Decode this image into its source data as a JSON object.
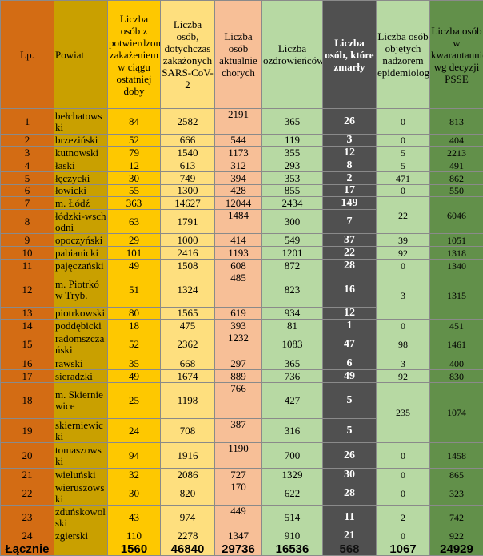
{
  "headers": [
    "Lp.",
    "Powiat",
    "Liczba osób z potwierdzonym zakażeniem w ciągu ostatniej doby",
    "Liczba osób, dotychczas zakażonych SARS-CoV-2",
    "Liczba osób aktualnie chorych",
    "Liczba ozdrowieńców",
    "Liczba osób, które zmarły",
    "Liczba osób objętych nadzorem epidemiologicznym",
    "Liczba osób w kwarantannie wg decyzji PSSE"
  ],
  "rows": [
    {
      "lp": "1",
      "powiat": "bełchatowski",
      "dobowe": "84",
      "zakazeni": "2582",
      "chorzy": "2191",
      "ozdrowiency": "365",
      "zmarli": "26",
      "nadzor": "0",
      "kwarantanna": "813"
    },
    {
      "lp": "2",
      "powiat": "brzeziński",
      "dobowe": "52",
      "zakazeni": "666",
      "chorzy": "544",
      "ozdrowiency": "119",
      "zmarli": "3",
      "nadzor": "0",
      "kwarantanna": "404"
    },
    {
      "lp": "3",
      "powiat": "kutnowski",
      "dobowe": "79",
      "zakazeni": "1540",
      "chorzy": "1173",
      "ozdrowiency": "355",
      "zmarli": "12",
      "nadzor": "5",
      "kwarantanna": "2213"
    },
    {
      "lp": "4",
      "powiat": "łaski",
      "dobowe": "12",
      "zakazeni": "613",
      "chorzy": "312",
      "ozdrowiency": "293",
      "zmarli": "8",
      "nadzor": "5",
      "kwarantanna": "491"
    },
    {
      "lp": "5",
      "powiat": "łęczycki",
      "dobowe": "30",
      "zakazeni": "749",
      "chorzy": "394",
      "ozdrowiency": "353",
      "zmarli": "2",
      "nadzor": "471",
      "kwarantanna": "862"
    },
    {
      "lp": "6",
      "powiat": "łowicki",
      "dobowe": "55",
      "zakazeni": "1300",
      "chorzy": "428",
      "ozdrowiency": "855",
      "zmarli": "17",
      "nadzor": "0",
      "kwarantanna": "550"
    },
    {
      "lp": "7",
      "powiat": "m. Łódź",
      "dobowe": "363",
      "zakazeni": "14627",
      "chorzy": "12044",
      "ozdrowiency": "2434",
      "zmarli": "149",
      "nadzor": "22",
      "kwarantanna": "6046"
    },
    {
      "lp": "8",
      "powiat": "łódzki-wschodni",
      "dobowe": "63",
      "zakazeni": "1791",
      "chorzy": "1484",
      "ozdrowiency": "300",
      "zmarli": "7",
      "nadzor": null,
      "kwarantanna": null
    },
    {
      "lp": "9",
      "powiat": "opoczyński",
      "dobowe": "29",
      "zakazeni": "1000",
      "chorzy": "414",
      "ozdrowiency": "549",
      "zmarli": "37",
      "nadzor": "39",
      "kwarantanna": "1051"
    },
    {
      "lp": "10",
      "powiat": "pabianicki",
      "dobowe": "101",
      "zakazeni": "2416",
      "chorzy": "1193",
      "ozdrowiency": "1201",
      "zmarli": "22",
      "nadzor": "92",
      "kwarantanna": "1318"
    },
    {
      "lp": "11",
      "powiat": "pajęczański",
      "dobowe": "49",
      "zakazeni": "1508",
      "chorzy": "608",
      "ozdrowiency": "872",
      "zmarli": "28",
      "nadzor": "0",
      "kwarantanna": "1340"
    },
    {
      "lp": "12",
      "powiat": "m. Piotrków Tryb.",
      "dobowe": "51",
      "zakazeni": "1324",
      "chorzy": "485",
      "ozdrowiency": "823",
      "zmarli": "16",
      "nadzor": "3",
      "kwarantanna": "1315"
    },
    {
      "lp": "13",
      "powiat": "piotrkowski",
      "dobowe": "80",
      "zakazeni": "1565",
      "chorzy": "619",
      "ozdrowiency": "934",
      "zmarli": "12",
      "nadzor": null,
      "kwarantanna": null
    },
    {
      "lp": "14",
      "powiat": "poddębicki",
      "dobowe": "18",
      "zakazeni": "475",
      "chorzy": "393",
      "ozdrowiency": "81",
      "zmarli": "1",
      "nadzor": "0",
      "kwarantanna": "451"
    },
    {
      "lp": "15",
      "powiat": "radomszczański",
      "dobowe": "52",
      "zakazeni": "2362",
      "chorzy": "1232",
      "ozdrowiency": "1083",
      "zmarli": "47",
      "nadzor": "98",
      "kwarantanna": "1461"
    },
    {
      "lp": "16",
      "powiat": "rawski",
      "dobowe": "35",
      "zakazeni": "668",
      "chorzy": "297",
      "ozdrowiency": "365",
      "zmarli": "6",
      "nadzor": "3",
      "kwarantanna": "400"
    },
    {
      "lp": "17",
      "powiat": "sieradzki",
      "dobowe": "49",
      "zakazeni": "1674",
      "chorzy": "889",
      "ozdrowiency": "736",
      "zmarli": "49",
      "nadzor": "92",
      "kwarantanna": "830"
    },
    {
      "lp": "18",
      "powiat": "m. Skierniewice",
      "dobowe": "25",
      "zakazeni": "1198",
      "chorzy": "766",
      "ozdrowiency": "427",
      "zmarli": "5",
      "nadzor": "235",
      "kwarantanna": "1074"
    },
    {
      "lp": "19",
      "powiat": "skierniewicki",
      "dobowe": "24",
      "zakazeni": "708",
      "chorzy": "387",
      "ozdrowiency": "316",
      "zmarli": "5",
      "nadzor": null,
      "kwarantanna": null
    },
    {
      "lp": "20",
      "powiat": "tomaszowski",
      "dobowe": "94",
      "zakazeni": "1916",
      "chorzy": "1190",
      "ozdrowiency": "700",
      "zmarli": "26",
      "nadzor": "0",
      "kwarantanna": "1458"
    },
    {
      "lp": "21",
      "powiat": "wieluński",
      "dobowe": "32",
      "zakazeni": "2086",
      "chorzy": "727",
      "ozdrowiency": "1329",
      "zmarli": "30",
      "nadzor": "0",
      "kwarantanna": "865"
    },
    {
      "lp": "22",
      "powiat": "wieruszowski",
      "dobowe": "30",
      "zakazeni": "820",
      "chorzy": "170",
      "ozdrowiency": "622",
      "zmarli": "28",
      "nadzor": "0",
      "kwarantanna": "323"
    },
    {
      "lp": "23",
      "powiat": "zduńskowolski",
      "dobowe": "43",
      "zakazeni": "974",
      "chorzy": "449",
      "ozdrowiency": "514",
      "zmarli": "11",
      "nadzor": "2",
      "kwarantanna": "742"
    },
    {
      "lp": "24",
      "powiat": "zgierski",
      "dobowe": "110",
      "zakazeni": "2278",
      "chorzy": "1347",
      "ozdrowiency": "910",
      "zmarli": "21",
      "nadzor": "0",
      "kwarantanna": "922"
    }
  ],
  "total": {
    "label": "Łącznie",
    "powiat": "",
    "dobowe": "1560",
    "zakazeni": "46840",
    "chorzy": "29736",
    "ozdrowiency": "16536",
    "zmarli": "568",
    "nadzor": "1067",
    "kwarantanna": "24929"
  },
  "colors": {
    "lp": "#d36c14",
    "powiat": "#c9a000",
    "dobowe": "#fec800",
    "zakazeni": "#fedf7e",
    "chorzy": "#f7bf97",
    "ozdrowiency": "#b7d9a3",
    "zmarli": "#505050",
    "nadzor": "#b7d9a3",
    "kwarantanna": "#62904a"
  }
}
